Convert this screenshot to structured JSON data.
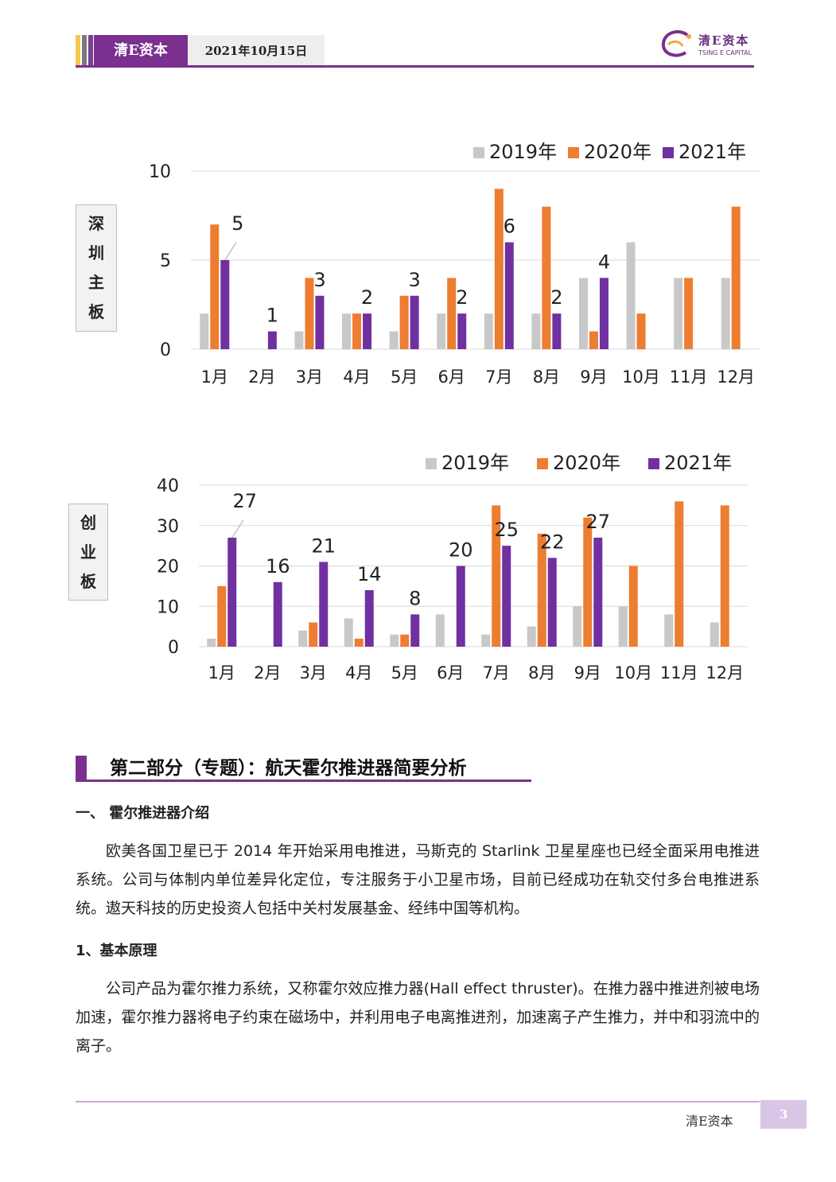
{
  "header": {
    "brand": "清E资本",
    "date": "2021年10月15日"
  },
  "logo": {
    "cn": "清E资本",
    "en": "TSING E CAPITAL"
  },
  "labels": {
    "chart1": [
      "深",
      "圳",
      "主",
      "板"
    ],
    "chart2": [
      "创",
      "业",
      "板"
    ]
  },
  "colors": {
    "s2019": "#c8c8c8",
    "s2020": "#ed7d31",
    "s2021": "#7030a0",
    "accent": "#7b2f8e"
  },
  "chart_data": [
    {
      "type": "bar",
      "categories": [
        "1月",
        "2月",
        "3月",
        "4月",
        "5月",
        "6月",
        "7月",
        "8月",
        "9月",
        "10月",
        "11月",
        "12月"
      ],
      "series": [
        {
          "name": "2019年",
          "values": [
            2,
            0,
            1,
            2,
            1,
            2,
            2,
            2,
            4,
            6,
            4,
            4
          ]
        },
        {
          "name": "2020年",
          "values": [
            7,
            0,
            4,
            2,
            3,
            4,
            9,
            8,
            1,
            2,
            4,
            8
          ]
        },
        {
          "name": "2021年",
          "values": [
            5,
            1,
            3,
            2,
            3,
            2,
            6,
            2,
            4,
            null,
            null,
            null
          ]
        }
      ],
      "data_labels_series": "2021年",
      "yticks": [
        0,
        5,
        10
      ],
      "ylim": [
        0,
        10
      ],
      "legend": "top-right",
      "grid": true
    },
    {
      "type": "bar",
      "categories": [
        "1月",
        "2月",
        "3月",
        "4月",
        "5月",
        "6月",
        "7月",
        "8月",
        "9月",
        "10月",
        "11月",
        "12月"
      ],
      "series": [
        {
          "name": "2019年",
          "values": [
            2,
            0,
            4,
            7,
            3,
            8,
            3,
            5,
            10,
            10,
            8,
            6
          ]
        },
        {
          "name": "2020年",
          "values": [
            15,
            0,
            6,
            2,
            3,
            0,
            35,
            28,
            32,
            20,
            36,
            35
          ]
        },
        {
          "name": "2021年",
          "values": [
            27,
            16,
            21,
            14,
            8,
            20,
            25,
            22,
            27,
            null,
            null,
            null
          ]
        }
      ],
      "data_labels_series": "2021年",
      "yticks": [
        0,
        10,
        20,
        30,
        40
      ],
      "ylim": [
        0,
        40
      ],
      "legend": "top-right",
      "grid": true
    }
  ],
  "section": {
    "title": "第二部分（专题）：航天霍尔推进器简要分析",
    "h1": "一、 霍尔推进器介绍",
    "p1": "欧美各国卫星已于 2014 年开始采用电推进，马斯克的 Starlink 卫星星座也已经全面采用电推进系统。公司与体制内单位差异化定位，专注服务于小卫星市场，目前已经成功在轨交付多台电推进系统。遨天科技的历史投资人包括中关村发展基金、经纬中国等机构。",
    "h2": "1、基本原理",
    "p2": "公司产品为霍尔推力系统，又称霍尔效应推力器(Hall effect thruster)。在推力器中推进剂被电场加速，霍尔推力器将电子约束在磁场中，并利用电子电离推进剂，加速离子产生推力，并中和羽流中的离子。"
  },
  "footer": {
    "brand": "清E资本",
    "page": "3"
  }
}
